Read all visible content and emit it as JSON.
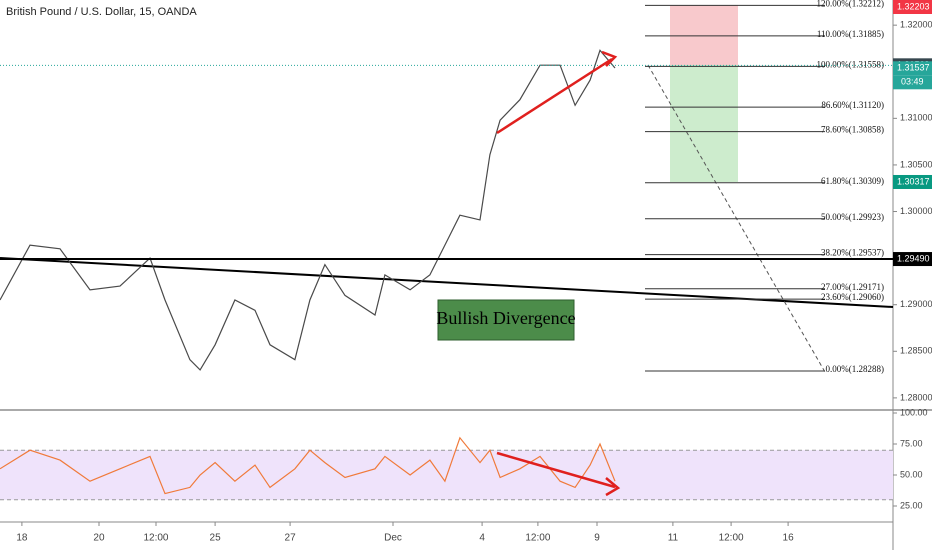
{
  "chart_data": [
    {
      "type": "line",
      "title": "British Pound / U.S. Dollar, 15, OANDA",
      "annotation": "Bullish Divergence",
      "countdown": "03:49",
      "x": [
        0,
        10,
        20,
        30,
        40,
        50,
        55,
        63.3,
        66.7,
        71.7,
        78.3,
        85,
        90,
        98.3,
        103.3,
        108.3,
        115,
        125,
        128.3,
        136.7,
        143.3,
        148.3,
        153.3,
        160,
        163.3,
        166.7,
        173.3,
        180,
        186.7,
        191.7,
        196.7,
        200,
        205
      ],
      "series": [
        {
          "name": "GBPUSD",
          "color": "#4a4a4a",
          "values": [
            1.2905,
            1.2964,
            1.296,
            1.2916,
            1.292,
            1.295,
            1.2905,
            1.2841,
            1.283,
            1.2857,
            1.2905,
            1.2894,
            1.2857,
            1.2841,
            1.2905,
            1.2943,
            1.291,
            1.2889,
            1.2932,
            1.2916,
            1.2932,
            1.2964,
            1.2996,
            1.2991,
            1.3061,
            1.3098,
            1.312,
            1.3157,
            1.3157,
            1.3114,
            1.3141,
            1.3173,
            1.3154
          ]
        }
      ],
      "xlim": [
        0,
        297.67
      ],
      "ylim": [
        1.2787,
        1.3227
      ],
      "yticks": [
        {
          "value": 1.32,
          "label": "1.32000"
        },
        {
          "value": 1.31,
          "label": "1.31000"
        },
        {
          "value": 1.305,
          "label": "1.30500"
        },
        {
          "value": 1.3,
          "label": "1.30000"
        },
        {
          "value": 1.29,
          "label": "1.29000"
        },
        {
          "value": 1.285,
          "label": "1.28500"
        },
        {
          "value": 1.28,
          "label": "1.28000"
        }
      ],
      "fib_levels": [
        {
          "value": 1.32212,
          "label": "120.00%(1.32212)"
        },
        {
          "value": 1.31885,
          "label": "110.00%(1.31885)"
        },
        {
          "value": 1.31558,
          "label": "100.00%(1.31558)"
        },
        {
          "value": 1.3112,
          "label": "86.60%(1.31120)"
        },
        {
          "value": 1.30858,
          "label": "78.60%(1.30858)"
        },
        {
          "value": 1.30309,
          "label": "61.80%(1.30309)"
        },
        {
          "value": 1.29923,
          "label": "50.00%(1.29923)"
        },
        {
          "value": 1.29537,
          "label": "38.20%(1.29537)"
        },
        {
          "value": 1.29171,
          "label": "27.00%(1.29171)"
        },
        {
          "value": 1.2906,
          "label": "23.60%(1.29060)"
        },
        {
          "value": 1.28288,
          "label": "0.00%(1.28288)"
        }
      ],
      "price_tags": [
        {
          "value": 1.32203,
          "label": "1.32203",
          "color": "#f23645"
        },
        {
          "value": 1.31569,
          "label": "1.31569",
          "color": "#37474f"
        },
        {
          "value": 1.31537,
          "label": "1.31537",
          "color": "#26a69a"
        },
        {
          "value": 1.30317,
          "label": "1.30317",
          "color": "#089981"
        },
        {
          "value": 1.2949,
          "label": "1.29490",
          "color": "#000000"
        }
      ]
    },
    {
      "type": "line",
      "x": [
        0,
        10,
        20,
        30,
        40,
        50,
        55,
        63.3,
        66.7,
        71.7,
        78.3,
        85,
        90,
        98.3,
        103.3,
        108.3,
        115,
        125,
        128.3,
        136.7,
        143.3,
        148.3,
        153.3,
        160,
        163.3,
        166.7,
        173.3,
        180,
        186.7,
        191.7,
        196.7,
        200,
        205
      ],
      "series": [
        {
          "name": "RSI",
          "color": "#f07a3a",
          "values": [
            55,
            70,
            62,
            45,
            55,
            65,
            35,
            40,
            50,
            60,
            45,
            58,
            40,
            55,
            70,
            60,
            48,
            55,
            65,
            50,
            62,
            45,
            80,
            60,
            70,
            48,
            55,
            65,
            45,
            40,
            58,
            75,
            45
          ]
        }
      ],
      "band": [
        30,
        70
      ],
      "xlim": [
        0,
        297.67
      ],
      "ylim": [
        13.7,
        100.8
      ],
      "yticks": [
        {
          "value": 100,
          "label": "100.00"
        },
        {
          "value": 75,
          "label": "75.00"
        },
        {
          "value": 50,
          "label": "50.00"
        },
        {
          "value": 25,
          "label": "25.00"
        }
      ],
      "xticks": [
        {
          "value": 7.3,
          "label": "18"
        },
        {
          "value": 33,
          "label": "20"
        },
        {
          "value": 52,
          "label": "12:00"
        },
        {
          "value": 71.7,
          "label": "25"
        },
        {
          "value": 96.7,
          "label": "27"
        },
        {
          "value": 131,
          "label": "Dec"
        },
        {
          "value": 160.7,
          "label": "4"
        },
        {
          "value": 179.3,
          "label": "12:00"
        },
        {
          "value": 199,
          "label": "9"
        },
        {
          "value": 224.3,
          "label": "11"
        },
        {
          "value": 243.7,
          "label": "12:00"
        },
        {
          "value": 262.7,
          "label": "16"
        }
      ]
    }
  ]
}
